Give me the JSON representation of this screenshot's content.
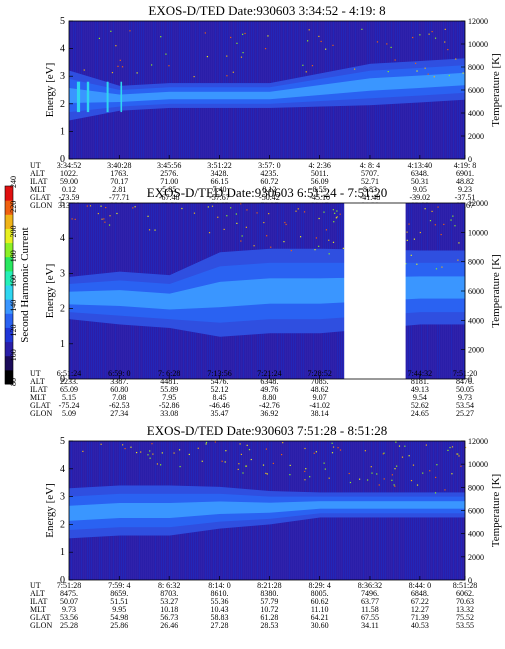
{
  "colorbar": {
    "label": "Second Harmonic Current",
    "ticks": [
      "240",
      "220",
      "200",
      "180",
      "160",
      "140",
      "120",
      "100",
      "80"
    ],
    "colors": [
      "#000000",
      "#1b0b5a",
      "#2a1ea8",
      "#1f36d8",
      "#2a62f2",
      "#3a96ff",
      "#2fd6f0",
      "#24f0b8",
      "#28e860",
      "#8cf026",
      "#e8f020",
      "#f0b418",
      "#f06010",
      "#e01010"
    ]
  },
  "orbit_labels": [
    "UT",
    "ALT",
    "ILAT",
    "MLT",
    "GLAT",
    "GLON"
  ],
  "panels": [
    {
      "title": "EXOS-D/TED   Date:930603  3:34:52 - 4:19: 8",
      "ylabel": "Energy [eV]",
      "y2label": "Temperature [K]",
      "yticks": [
        "0",
        "1",
        "2",
        "3",
        "4",
        "5"
      ],
      "y2ticks": [
        "0",
        "2000",
        "4000",
        "6000",
        "8000",
        "10000",
        "12000"
      ],
      "gap": null,
      "orbit": [
        [
          "3:34:52",
          "1022.",
          "59.00",
          "0.12",
          "-73.59",
          "313.99"
        ],
        [
          "3:40:28",
          "1763.",
          "70.17",
          "2.81",
          "-77.71",
          "32.34"
        ],
        [
          "3:45:56",
          "2576.",
          "71.00",
          "5.85",
          "-67.48",
          "65.52"
        ],
        [
          "3:51:22",
          "3428.",
          "66.15",
          "7.40",
          "-57.67",
          "74.65"
        ],
        [
          "3:57: 0",
          "4235.",
          "60.72",
          "8.12",
          "-50.42",
          "78.27"
        ],
        [
          "4: 2:36",
          "5011.",
          "56.09",
          "8.55",
          "-45.10",
          "80.17"
        ],
        [
          "4: 8: 4",
          "5707.",
          "52.71",
          "8.83",
          "-41.48",
          "81.29"
        ],
        [
          "4:13:40",
          "6348.",
          "50.31",
          "9.05",
          "-39.02",
          "82.08"
        ],
        [
          "4:19: 8",
          "6901.",
          "48.82",
          "9.23",
          "-37.51",
          "82.67"
        ]
      ]
    },
    {
      "title": "EXOS-D/TED   Date:930603  6:51:24 - 7:51:20",
      "ylabel": "Energy [eV]",
      "y2label": "Temperature [K]",
      "yticks": [
        "0",
        "1",
        "2",
        "3",
        "4",
        "5"
      ],
      "y2ticks": [
        "0",
        "2000",
        "4000",
        "6000",
        "8000",
        "10000",
        "12000"
      ],
      "gap": [
        0.695,
        0.85
      ],
      "orbit": [
        [
          "6:51:24",
          "2233.",
          "65.09",
          "5.15",
          "-75.24",
          "5.09"
        ],
        [
          "6:59: 0",
          "3387.",
          "60.80",
          "7.08",
          "-62.53",
          "27.34"
        ],
        [
          "7: 6:28",
          "4481.",
          "55.89",
          "7.95",
          "-52.86",
          "33.08"
        ],
        [
          "7:13:56",
          "5476.",
          "52.12",
          "8.45",
          "-46.46",
          "35.47"
        ],
        [
          "7:21:24",
          "6348.",
          "49.76",
          "8.80",
          "-42.76",
          "36.92"
        ],
        [
          "7:28:52",
          "7085.",
          "48.62",
          "9.07",
          "-41.02",
          "38.14"
        ],
        null,
        [
          "7:44:32",
          "8181.",
          "49.13",
          "9.54",
          "52.62",
          "24.65"
        ],
        [
          "7:51:20",
          "8470.",
          "50.05",
          "9.73",
          "53.54",
          "25.27"
        ]
      ]
    },
    {
      "title": "EXOS-D/TED   Date:930603  7:51:28 - 8:51:28",
      "ylabel": "Energy [eV]",
      "y2label": "Temperature [K]",
      "yticks": [
        "0",
        "1",
        "2",
        "3",
        "4",
        "5"
      ],
      "y2ticks": [
        "0",
        "2000",
        "4000",
        "6000",
        "8000",
        "10000",
        "12000"
      ],
      "gap": null,
      "orbit": [
        [
          "7:51:28",
          "8475.",
          "50.07",
          "9.73",
          "53.56",
          "25.28"
        ],
        [
          "7:59: 4",
          "8659.",
          "51.51",
          "9.95",
          "54.98",
          "25.86"
        ],
        [
          "8: 6:32",
          "8703.",
          "53.27",
          "10.18",
          "56.73",
          "26.46"
        ],
        [
          "8:14: 0",
          "8610.",
          "55.36",
          "10.43",
          "58.83",
          "27.28"
        ],
        [
          "8:21:28",
          "8380.",
          "57.79",
          "10.72",
          "61.28",
          "28.53"
        ],
        [
          "8:29: 4",
          "8005.",
          "60.62",
          "11.10",
          "64.21",
          "30.60"
        ],
        [
          "8:36:32",
          "7496.",
          "63.77",
          "11.58",
          "67.55",
          "34.11"
        ],
        [
          "8:44: 0",
          "6848.",
          "67.22",
          "12.27",
          "71.39",
          "40.53"
        ],
        [
          "8:51:28",
          "6062.",
          "70.63",
          "13.32",
          "75.52",
          "53.55"
        ]
      ]
    }
  ],
  "chart_data": [
    {
      "type": "heatmap",
      "title": "EXOS-D/TED   Date:930603  3:34:52 - 4:19: 8",
      "xlabel": "UT",
      "ylabel": "Energy [eV]",
      "y2label": "Temperature [K]",
      "ylim": [
        0,
        5
      ],
      "y2lim": [
        0,
        12000
      ],
      "colorbar": {
        "label": "Second Harmonic Current",
        "range": [
          80,
          240
        ]
      },
      "x": [
        "3:34:52",
        "3:40:28",
        "3:45:56",
        "3:51:22",
        "3:57: 0",
        "4: 2:36",
        "4: 8: 4",
        "4:13:40",
        "4:19: 8"
      ],
      "band_center_ev": [
        2.3,
        2.2,
        2.3,
        2.3,
        2.3,
        2.5,
        2.7,
        2.8,
        2.9
      ],
      "band_halfwidth_ev": [
        0.6,
        0.3,
        0.3,
        0.3,
        0.3,
        0.4,
        0.5,
        0.5,
        0.5
      ],
      "grid": false
    },
    {
      "type": "heatmap",
      "title": "EXOS-D/TED   Date:930603  6:51:24 - 7:51:20",
      "xlabel": "UT",
      "ylabel": "Energy [eV]",
      "y2label": "Temperature [K]",
      "ylim": [
        0,
        5
      ],
      "y2lim": [
        0,
        12000
      ],
      "colorbar": {
        "label": "Second Harmonic Current",
        "range": [
          80,
          240
        ]
      },
      "x": [
        "6:51:24",
        "6:59: 0",
        "7: 6:28",
        "7:13:56",
        "7:21:24",
        "7:28:52",
        "7:44:32",
        "7:51:20"
      ],
      "band_center_ev": [
        2.3,
        2.3,
        2.2,
        2.4,
        2.5,
        2.5,
        2.6,
        2.6
      ],
      "band_halfwidth_ev": [
        0.4,
        0.5,
        0.5,
        0.8,
        0.8,
        0.8,
        0.7,
        0.7
      ],
      "data_gap": [
        "7:28:52",
        "7:44:32"
      ],
      "grid": false
    },
    {
      "type": "heatmap",
      "title": "EXOS-D/TED   Date:930603  7:51:28 - 8:51:28",
      "xlabel": "UT",
      "ylabel": "Energy [eV]",
      "y2label": "Temperature [K]",
      "ylim": [
        0,
        5
      ],
      "y2lim": [
        0,
        12000
      ],
      "colorbar": {
        "label": "Second Harmonic Current",
        "range": [
          80,
          240
        ]
      },
      "x": [
        "7:51:28",
        "7:59: 4",
        "8: 6:32",
        "8:14: 0",
        "8:21:28",
        "8:29: 4",
        "8:36:32",
        "8:44: 0",
        "8:51:28"
      ],
      "band_center_ev": [
        2.4,
        2.5,
        2.5,
        2.6,
        2.6,
        2.7,
        2.7,
        2.7,
        2.7
      ],
      "band_halfwidth_ev": [
        0.6,
        0.6,
        0.6,
        0.5,
        0.4,
        0.3,
        0.3,
        0.3,
        0.3
      ],
      "grid": false
    }
  ]
}
